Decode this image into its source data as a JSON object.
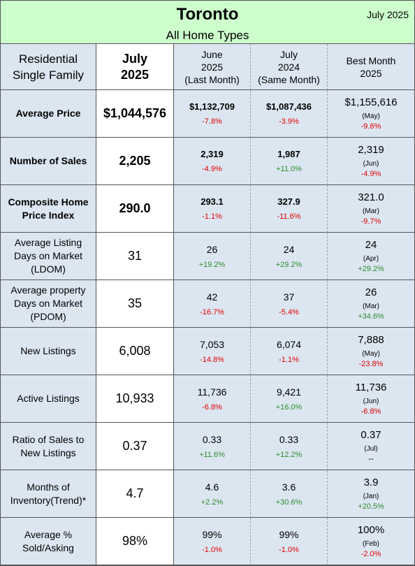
{
  "header": {
    "title": "Toronto",
    "date": "July 2025",
    "subtitle": "All Home Types"
  },
  "table": {
    "columns": [
      [
        "Residential",
        "Single Family"
      ],
      [
        "July",
        "2025"
      ],
      [
        "June",
        "2025",
        "(Last Month)"
      ],
      [
        "July",
        "2024",
        "(Same Month)"
      ],
      [
        "Best Month",
        "2025"
      ]
    ],
    "rows": [
      {
        "label": "Average Price",
        "current": "$1,044,576",
        "last": {
          "value": "$1,132,709",
          "change": "-7.8%"
        },
        "same": {
          "value": "$1,087,436",
          "change": "-3.9%"
        },
        "best": {
          "value": "$1,155,616",
          "month": "(May)",
          "change": "-9.6%"
        }
      },
      {
        "label": "Number of Sales",
        "current": "2,205",
        "last": {
          "value": "2,319",
          "change": "-4.9%"
        },
        "same": {
          "value": "1,987",
          "change": "+11.0%"
        },
        "best": {
          "value": "2,319",
          "month": "(Jun)",
          "change": "-4.9%"
        }
      },
      {
        "label": "Composite Home Price Index",
        "current": "290.0",
        "last": {
          "value": "293.1",
          "change": "-1.1%"
        },
        "same": {
          "value": "327.9",
          "change": "-11.6%"
        },
        "best": {
          "value": "321.0",
          "month": "(Mar)",
          "change": "-9.7%"
        }
      },
      {
        "label": "Average Listing Days on Market (LDOM)",
        "current": "31",
        "last": {
          "value": "26",
          "change": "+19.2%"
        },
        "same": {
          "value": "24",
          "change": "+29.2%"
        },
        "best": {
          "value": "24",
          "month": "(Apr)",
          "change": "+29.2%"
        }
      },
      {
        "label": "Average property Days on Market (PDOM)",
        "current": "35",
        "last": {
          "value": "42",
          "change": "-16.7%"
        },
        "same": {
          "value": "37",
          "change": "-5.4%"
        },
        "best": {
          "value": "26",
          "month": "(Mar)",
          "change": "+34.6%"
        }
      },
      {
        "label": "New Listings",
        "current": "6,008",
        "last": {
          "value": "7,053",
          "change": "-14.8%"
        },
        "same": {
          "value": "6,074",
          "change": "-1.1%"
        },
        "best": {
          "value": "7,888",
          "month": "(May)",
          "change": "-23.8%"
        }
      },
      {
        "label": "Active Listings",
        "current": "10,933",
        "last": {
          "value": "11,736",
          "change": "-6.8%"
        },
        "same": {
          "value": "9,421",
          "change": "+16.0%"
        },
        "best": {
          "value": "11,736",
          "month": "(Jun)",
          "change": "-6.8%"
        }
      },
      {
        "label": "Ratio of Sales to New Listings",
        "current": "0.37",
        "last": {
          "value": "0.33",
          "change": "+11.6%"
        },
        "same": {
          "value": "0.33",
          "change": "+12.2%"
        },
        "best": {
          "value": "0.37",
          "month": "(Jul)",
          "change": "--"
        }
      },
      {
        "label": "Months of Inventory(Trend)*",
        "current": "4.7",
        "last": {
          "value": "4.6",
          "change": "+2.2%"
        },
        "same": {
          "value": "3.6",
          "change": "+30.6%"
        },
        "best": {
          "value": "3.9",
          "month": "(Jan)",
          "change": "+20.5%"
        }
      },
      {
        "label": "Average % Sold/Asking",
        "current": "98%",
        "last": {
          "value": "99%",
          "change": "-1.0%"
        },
        "same": {
          "value": "99%",
          "change": "-1.0%"
        },
        "best": {
          "value": "100%",
          "month": "(Feb)",
          "change": "-2.0%"
        }
      }
    ]
  }
}
